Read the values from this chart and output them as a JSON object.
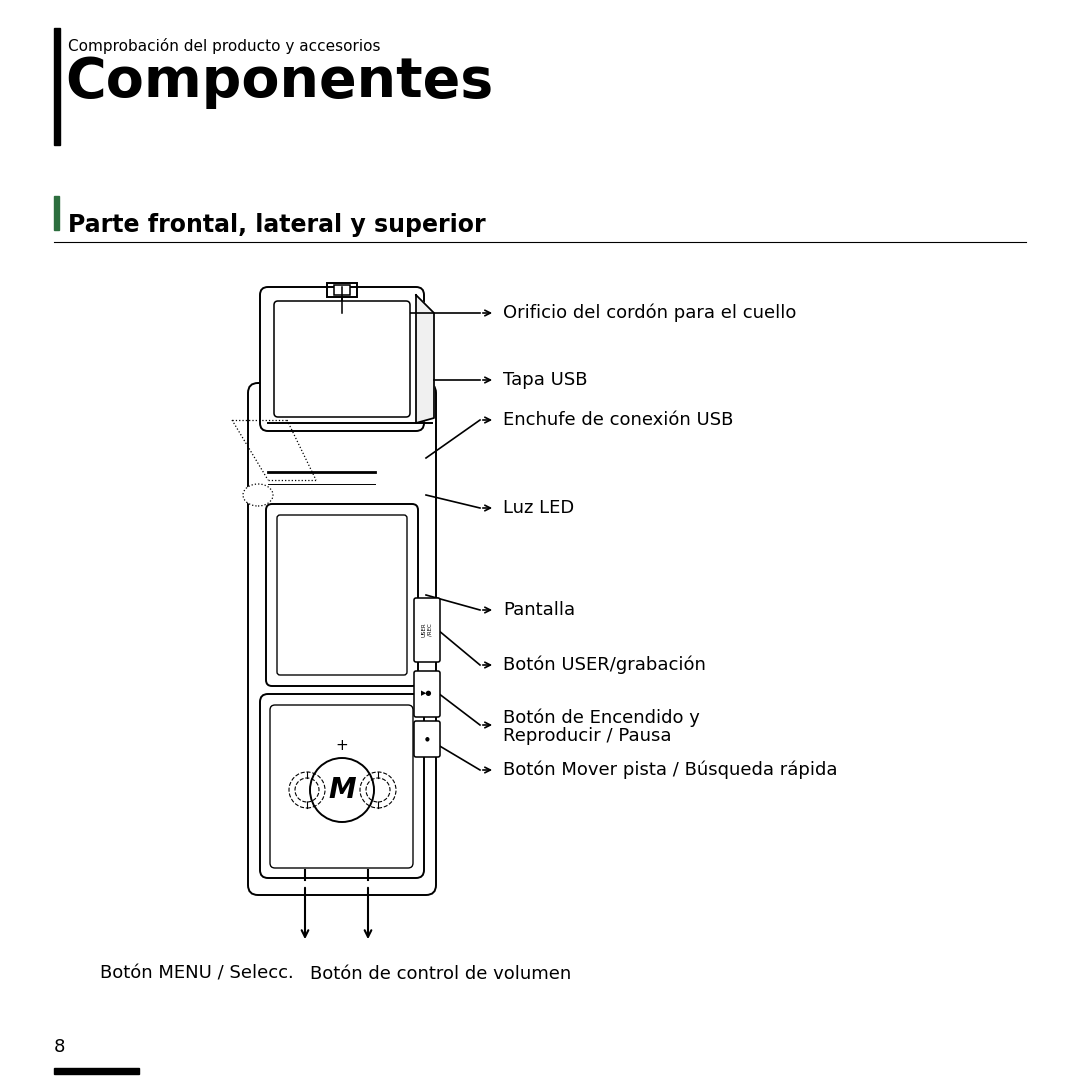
{
  "bg_color": "#ffffff",
  "title_small": "Comprobación del producto y accesorios",
  "title_large": "Componentes",
  "section_title": "Parte frontal, lateral y superior",
  "page_number": "8",
  "labels": [
    "Orificio del cordón para el cuello",
    "Tapa USB",
    "Enchufe de conexión USB",
    "Luz LED",
    "Pantalla",
    "Botón USER/grabación",
    "Botón de Encendido y",
    "Reproducir / Pausa",
    "Botón Mover pista / Búsqueda rápida"
  ],
  "bottom_labels": [
    "Botón MENU / Selecc.",
    "Botón de control de volumen"
  ],
  "accent_color": "#2d6e3e",
  "text_color": "#000000",
  "line_color": "#000000"
}
